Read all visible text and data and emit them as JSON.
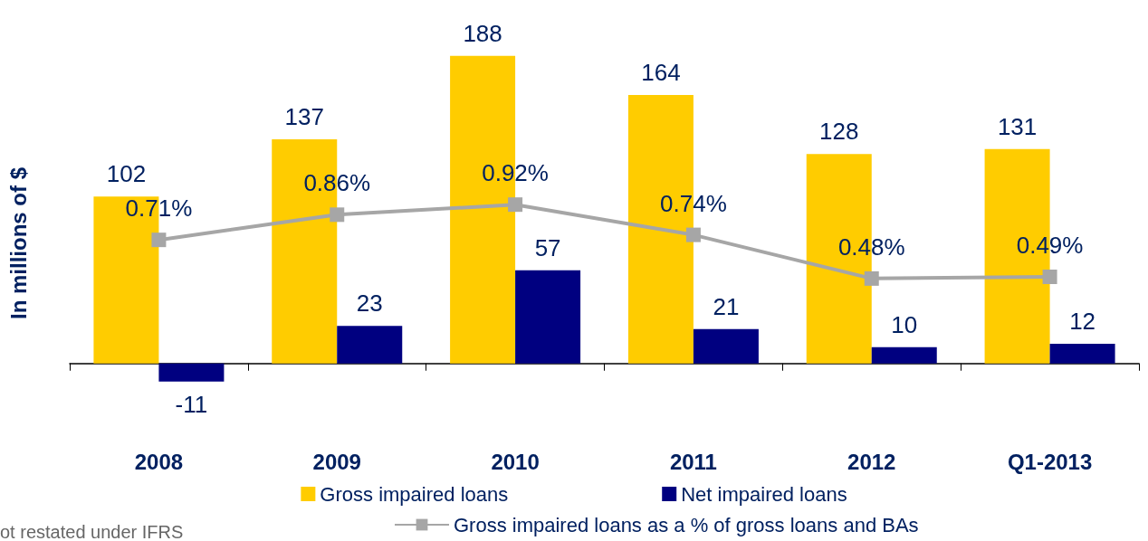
{
  "chart_data": {
    "type": "bar",
    "ylabel": "In millions of $",
    "categories": [
      "2008",
      "2009",
      "2010",
      "2011",
      "2012",
      "Q1-2013"
    ],
    "series": [
      {
        "name": "Gross impaired loans",
        "color": "#ffcc00",
        "values": [
          102,
          137,
          188,
          164,
          128,
          131
        ]
      },
      {
        "name": "Net impaired loans",
        "color": "#000080",
        "values": [
          -11,
          23,
          57,
          21,
          10,
          12
        ]
      },
      {
        "name": "Gross impaired loans as a % of gross loans and BAs",
        "type": "line",
        "axis": "y2",
        "color": "#a6a6a6",
        "marker": "square",
        "values": [
          0.71,
          0.86,
          0.92,
          0.74,
          0.48,
          0.49
        ],
        "value_labels": [
          "0.71%",
          "0.86%",
          "0.92%",
          "0.74%",
          "0.48%",
          "0.49%"
        ]
      }
    ],
    "data_labels": true,
    "legend": "bottom",
    "grid": false,
    "annotations": [
      "ot restated under IFRS"
    ]
  }
}
